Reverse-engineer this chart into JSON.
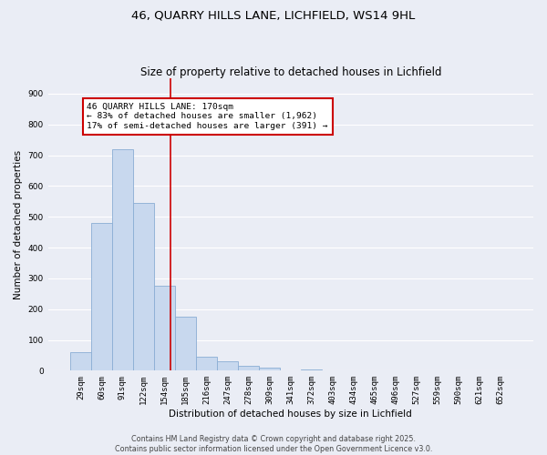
{
  "title": "46, QUARRY HILLS LANE, LICHFIELD, WS14 9HL",
  "subtitle": "Size of property relative to detached houses in Lichfield",
  "xlabel": "Distribution of detached houses by size in Lichfield",
  "ylabel": "Number of detached properties",
  "bar_color": "#c8d8ee",
  "bar_edgecolor": "#8aadd4",
  "bar_linewidth": 0.6,
  "categories": [
    "29sqm",
    "60sqm",
    "91sqm",
    "122sqm",
    "154sqm",
    "185sqm",
    "216sqm",
    "247sqm",
    "278sqm",
    "309sqm",
    "341sqm",
    "372sqm",
    "403sqm",
    "434sqm",
    "465sqm",
    "496sqm",
    "527sqm",
    "559sqm",
    "590sqm",
    "621sqm",
    "652sqm"
  ],
  "values": [
    60,
    480,
    720,
    545,
    275,
    175,
    45,
    30,
    15,
    10,
    0,
    5,
    0,
    0,
    0,
    0,
    0,
    0,
    0,
    0,
    0
  ],
  "redline_index": 4.3,
  "redline_color": "#cc0000",
  "redline_linewidth": 1.2,
  "annotation_text": "46 QUARRY HILLS LANE: 170sqm\n← 83% of detached houses are smaller (1,962)\n17% of semi-detached houses are larger (391) →",
  "ylim": [
    0,
    950
  ],
  "yticks": [
    0,
    100,
    200,
    300,
    400,
    500,
    600,
    700,
    800,
    900
  ],
  "background_color": "#eaedf5",
  "grid_color": "#ffffff",
  "title_fontsize": 9.5,
  "subtitle_fontsize": 8.5,
  "xlabel_fontsize": 7.5,
  "ylabel_fontsize": 7.5,
  "tick_fontsize": 6.5,
  "ann_fontsize": 6.8,
  "footer_line1": "Contains HM Land Registry data © Crown copyright and database right 2025.",
  "footer_line2": "Contains public sector information licensed under the Open Government Licence v3.0."
}
